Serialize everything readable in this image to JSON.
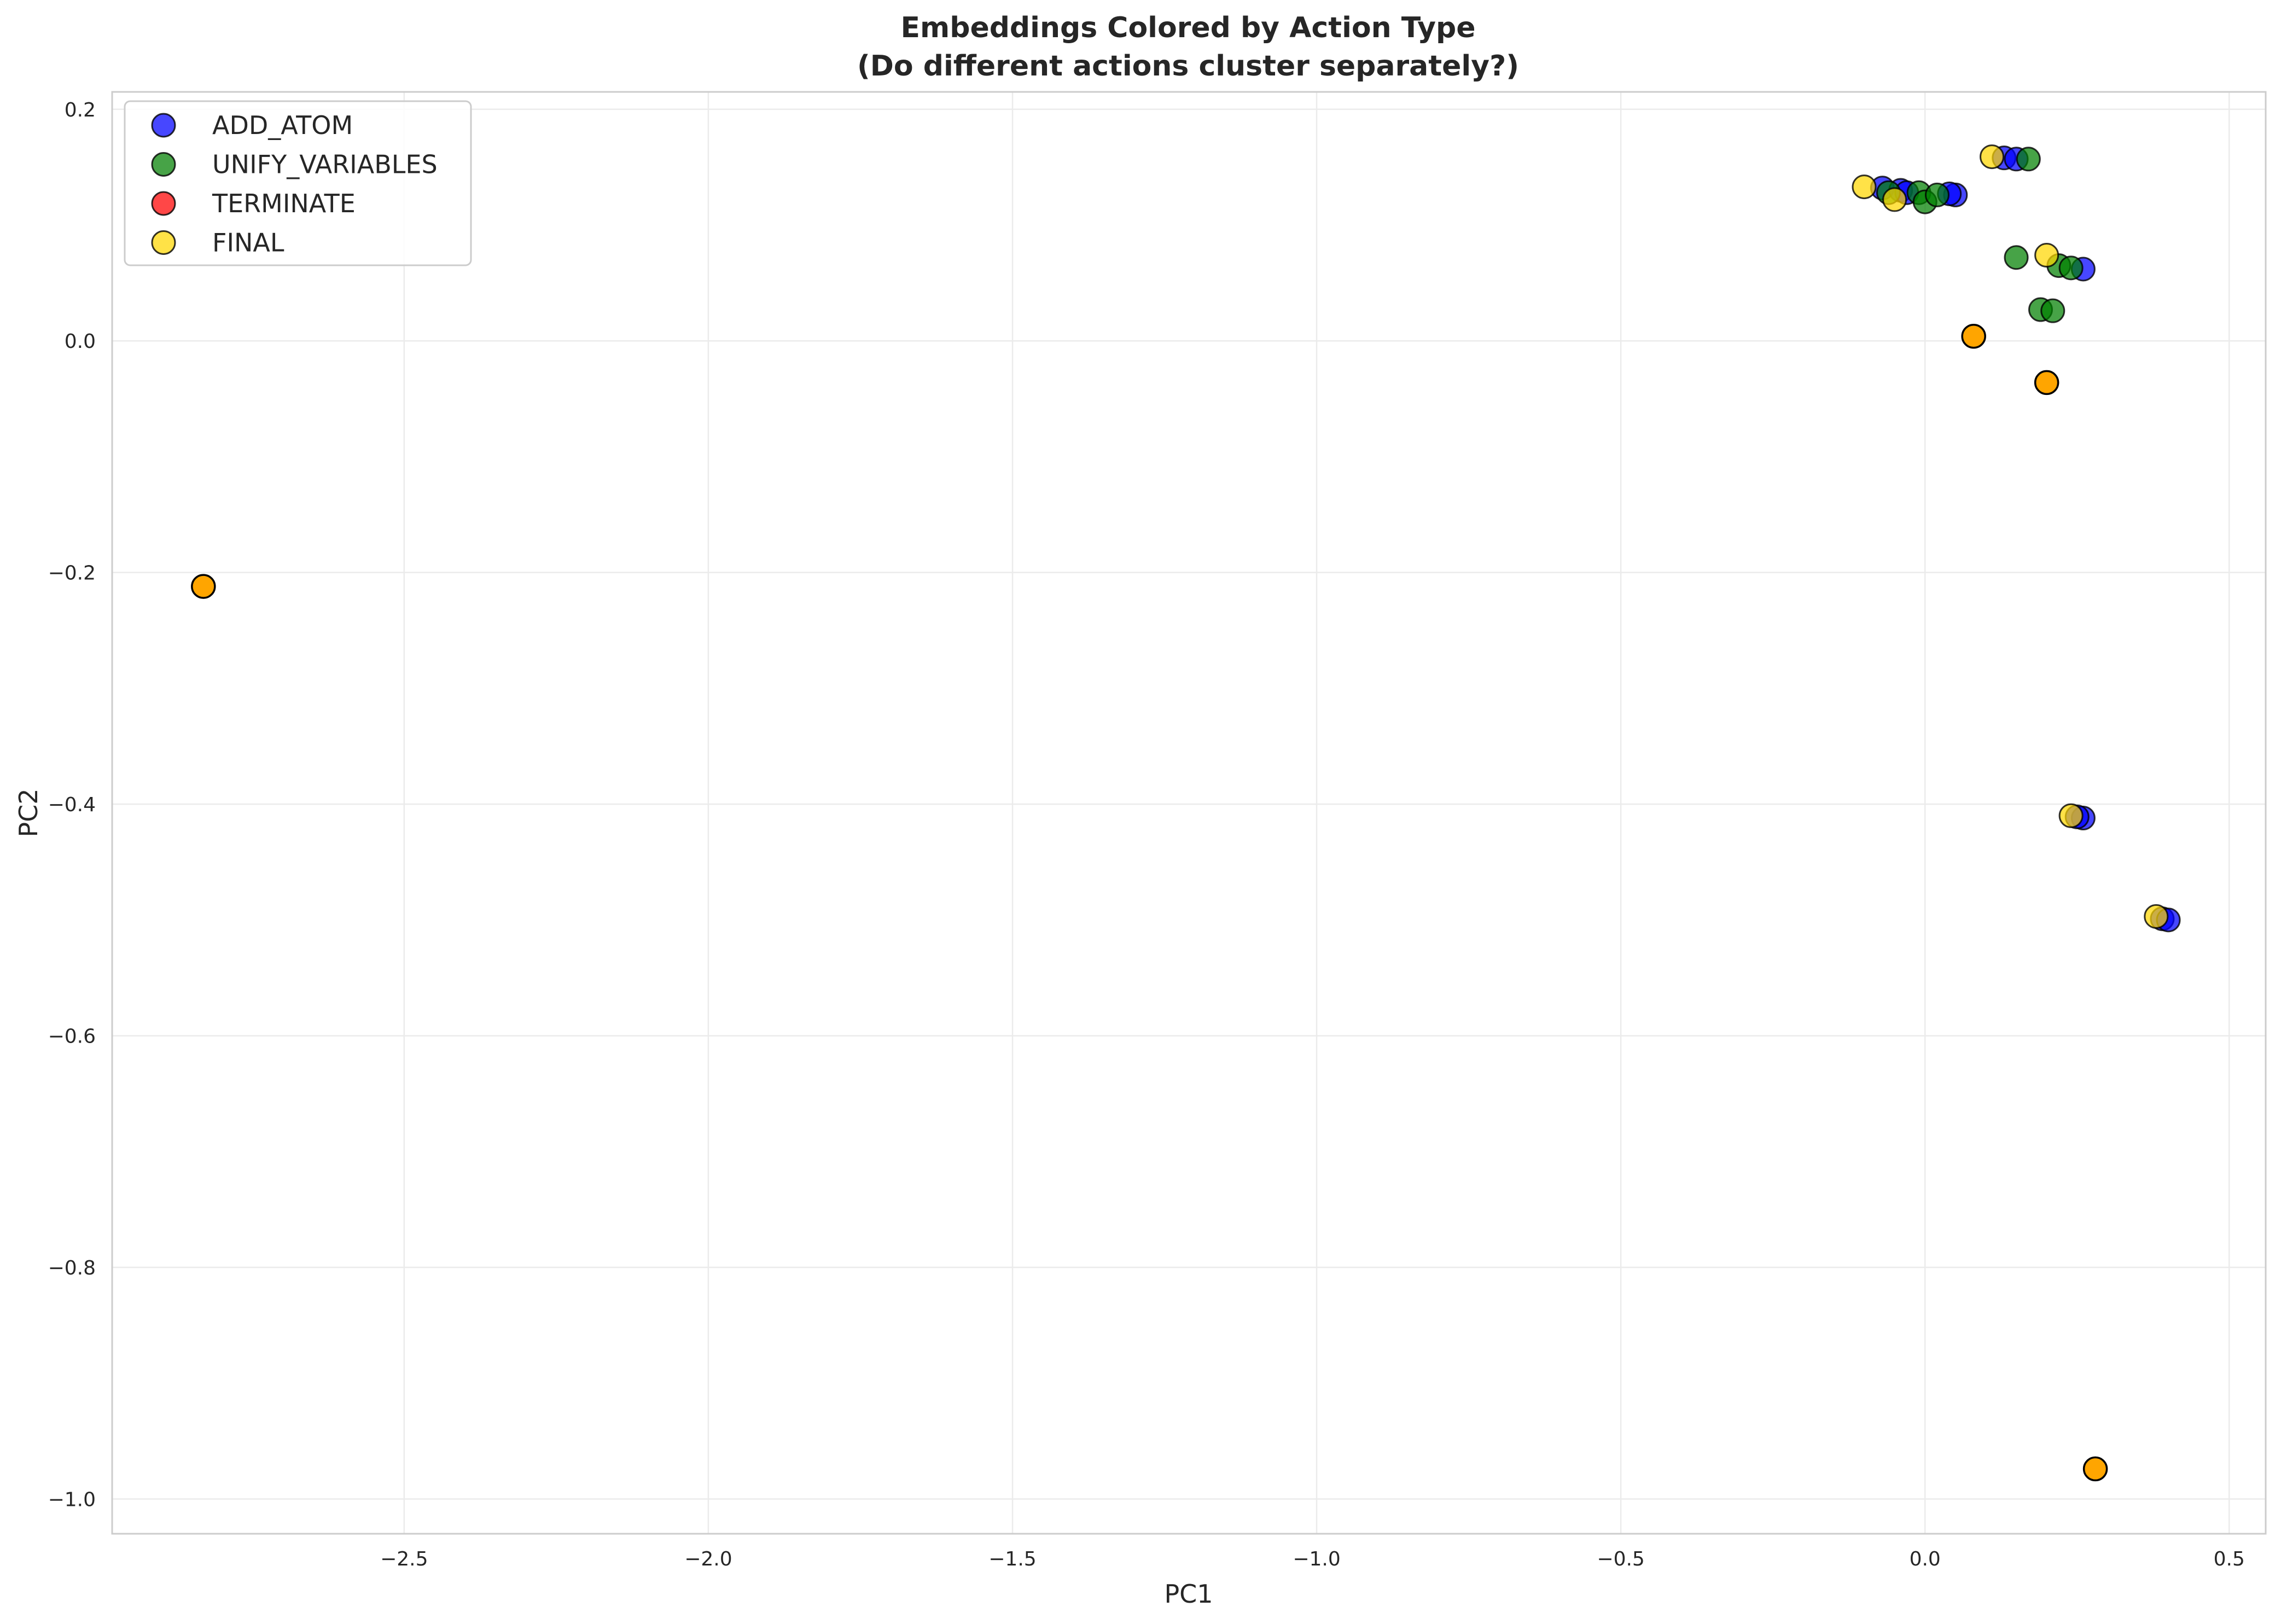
{
  "chart_data": {
    "type": "scatter",
    "title": "Embeddings Colored by Action Type",
    "subtitle": "(Do different actions cluster separately?)",
    "xlabel": "PC1",
    "ylabel": "PC2",
    "xlim": [
      -2.98,
      0.56
    ],
    "ylim": [
      -1.03,
      0.215
    ],
    "xticks": [
      -2.5,
      -2.0,
      -1.5,
      -1.0,
      -0.5,
      0.0,
      0.5
    ],
    "yticks": [
      0.2,
      0.0,
      -0.2,
      -0.4,
      -0.6,
      -0.8,
      -1.0
    ],
    "xtick_labels": [
      "−2.5",
      "−2.0",
      "−1.5",
      "−1.0",
      "−0.5",
      "0.0",
      "0.5"
    ],
    "ytick_labels": [
      "0.2",
      "0.0",
      "−0.2",
      "−0.4",
      "−0.6",
      "−0.8",
      "−1.0"
    ],
    "grid": true,
    "legend_position": "top-left",
    "series": [
      {
        "name": "ADD_ATOM",
        "color": "#0000ff",
        "points": [
          [
            -0.07,
            0.132
          ],
          [
            -0.04,
            0.13
          ],
          [
            -0.03,
            0.128
          ],
          [
            0.05,
            0.126
          ],
          [
            0.04,
            0.127
          ],
          [
            0.13,
            0.158
          ],
          [
            0.15,
            0.157
          ],
          [
            0.26,
            0.062
          ],
          [
            0.26,
            -0.412
          ],
          [
            0.25,
            -0.411
          ],
          [
            0.39,
            -0.499
          ],
          [
            0.4,
            -0.5
          ]
        ]
      },
      {
        "name": "UNIFY_VARIABLES",
        "color": "#008000",
        "points": [
          [
            -0.06,
            0.128
          ],
          [
            -0.01,
            0.128
          ],
          [
            0.0,
            0.12
          ],
          [
            0.02,
            0.126
          ],
          [
            0.17,
            0.157
          ],
          [
            0.15,
            0.072
          ],
          [
            0.22,
            0.065
          ],
          [
            0.24,
            0.063
          ],
          [
            0.19,
            0.027
          ],
          [
            0.21,
            0.026
          ]
        ]
      },
      {
        "name": "TERMINATE",
        "color": "#ff0000",
        "points": []
      },
      {
        "name": "FINAL",
        "color": "#ffd700",
        "points": [
          [
            -0.1,
            0.133
          ],
          [
            -0.05,
            0.122
          ],
          [
            0.11,
            0.159
          ],
          [
            0.2,
            0.074
          ],
          [
            0.24,
            -0.41
          ],
          [
            0.38,
            -0.497
          ]
        ]
      }
    ],
    "unlabeled_points": {
      "color": "#ffa500",
      "points": [
        [
          -2.83,
          -0.212
        ],
        [
          0.08,
          0.004
        ],
        [
          0.2,
          -0.036
        ],
        [
          0.28,
          -0.974
        ]
      ]
    }
  }
}
